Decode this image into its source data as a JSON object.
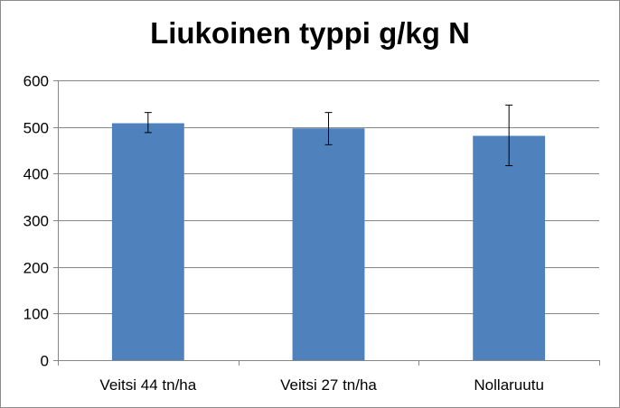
{
  "chart_data": {
    "type": "bar",
    "title": "Liukoinen typpi g/kg N",
    "xlabel": "",
    "ylabel": "",
    "categories": [
      "Veitsi 44 tn/ha",
      "Veitsi 27 tn/ha",
      "Nollaruutu"
    ],
    "values": [
      508,
      497,
      481
    ],
    "error_low": [
      488,
      462,
      417
    ],
    "error_high": [
      531,
      531,
      547
    ],
    "ylim": [
      0,
      600
    ],
    "yticks": [
      0,
      100,
      200,
      300,
      400,
      500,
      600
    ],
    "ytick_labels": [
      "0",
      "100",
      "200",
      "300",
      "400",
      "500",
      "600"
    ],
    "grid": true,
    "legend": "none",
    "bar_color": "#4f81bd",
    "grid_color": "#868686"
  }
}
